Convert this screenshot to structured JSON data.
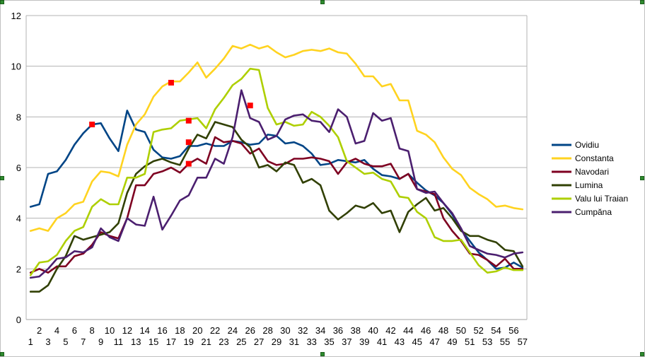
{
  "chart_data": {
    "type": "line",
    "title": "",
    "xlabel": "",
    "ylabel": "",
    "ylim": [
      0,
      12
    ],
    "yticks": [
      0,
      2,
      4,
      6,
      8,
      10,
      12
    ],
    "grid": "horizontal",
    "legend_position": "right",
    "categories": [
      "1",
      "2",
      "3",
      "4",
      "5",
      "6",
      "7",
      "8",
      "9",
      "10",
      "11",
      "12",
      "13",
      "14",
      "15",
      "16",
      "17",
      "18",
      "19",
      "20",
      "21",
      "22",
      "23",
      "24",
      "25",
      "26",
      "27",
      "28",
      "29",
      "30",
      "31",
      "32",
      "33",
      "34",
      "35",
      "36",
      "37",
      "38",
      "39",
      "40",
      "41",
      "42",
      "43",
      "44",
      "45",
      "46",
      "47",
      "48",
      "49",
      "50",
      "51",
      "52",
      "53",
      "54",
      "55",
      "56",
      "57"
    ],
    "series": [
      {
        "name": "Ovidiu",
        "color": "#004586",
        "values": [
          4.45,
          4.55,
          5.75,
          5.85,
          6.3,
          6.9,
          7.35,
          7.7,
          7.75,
          7.15,
          6.65,
          8.25,
          7.5,
          7.4,
          6.7,
          6.4,
          6.35,
          6.45,
          6.85,
          6.85,
          6.95,
          6.85,
          6.85,
          7.05,
          7.0,
          6.9,
          6.95,
          7.3,
          7.25,
          6.95,
          7.0,
          6.85,
          6.55,
          6.1,
          6.15,
          6.3,
          6.25,
          6.2,
          6.3,
          5.95,
          5.7,
          5.65,
          5.55,
          5.75,
          5.4,
          5.1,
          4.9,
          4.6,
          4.15,
          3.55,
          3.1,
          2.65,
          2.35,
          2.0,
          2.05,
          2.25,
          2.05
        ]
      },
      {
        "name": "Constanta",
        "color": "#ffd320",
        "values": [
          3.5,
          3.6,
          3.5,
          4.0,
          4.2,
          4.55,
          4.65,
          5.45,
          5.85,
          5.8,
          5.65,
          6.9,
          7.7,
          8.1,
          8.8,
          9.2,
          9.4,
          9.4,
          9.75,
          10.15,
          9.55,
          9.9,
          10.3,
          10.8,
          10.7,
          10.85,
          10.7,
          10.8,
          10.55,
          10.35,
          10.45,
          10.6,
          10.65,
          10.6,
          10.7,
          10.55,
          10.5,
          10.1,
          9.6,
          9.6,
          9.2,
          9.3,
          8.65,
          8.65,
          7.45,
          7.3,
          7.0,
          6.4,
          5.95,
          5.7,
          5.2,
          4.95,
          4.75,
          4.45,
          4.5,
          4.4,
          4.35
        ]
      },
      {
        "name": "Navodari",
        "color": "#7e0021",
        "values": [
          1.85,
          2.0,
          1.85,
          2.1,
          2.1,
          2.5,
          2.6,
          2.95,
          3.45,
          3.3,
          3.2,
          4.0,
          5.3,
          5.3,
          5.75,
          5.85,
          6.0,
          5.8,
          6.15,
          6.35,
          6.15,
          7.2,
          7.0,
          7.05,
          6.95,
          6.55,
          6.75,
          6.25,
          6.1,
          6.15,
          6.35,
          6.35,
          6.4,
          6.35,
          6.25,
          5.75,
          6.2,
          6.35,
          6.15,
          6.05,
          6.05,
          6.15,
          5.55,
          5.75,
          5.15,
          5.05,
          4.95,
          4.0,
          3.5,
          3.1,
          2.6,
          2.55,
          2.35,
          2.1,
          2.4,
          2.0,
          2.0
        ]
      },
      {
        "name": "Lumina",
        "color": "#314004",
        "values": [
          1.1,
          1.1,
          1.35,
          2.0,
          2.5,
          3.3,
          3.15,
          3.25,
          3.35,
          3.45,
          3.8,
          5.0,
          5.75,
          6.05,
          6.25,
          6.35,
          6.2,
          6.1,
          6.75,
          7.3,
          7.15,
          7.8,
          7.7,
          7.6,
          7.1,
          6.8,
          6.0,
          6.1,
          5.85,
          6.2,
          6.1,
          5.4,
          5.55,
          5.3,
          4.3,
          3.95,
          4.2,
          4.5,
          4.4,
          4.6,
          4.2,
          4.3,
          3.45,
          4.25,
          4.55,
          4.8,
          4.3,
          4.4,
          4.0,
          3.5,
          3.3,
          3.3,
          3.15,
          3.05,
          2.75,
          2.7,
          2.1
        ]
      },
      {
        "name": "Valu lui Traian",
        "color": "#aecf00",
        "values": [
          1.75,
          2.25,
          2.3,
          2.55,
          3.1,
          3.5,
          3.65,
          4.45,
          4.75,
          4.55,
          4.55,
          5.6,
          5.6,
          5.75,
          7.4,
          7.5,
          7.55,
          7.85,
          7.9,
          7.95,
          7.55,
          8.3,
          8.75,
          9.25,
          9.5,
          9.9,
          9.85,
          8.35,
          7.7,
          7.8,
          7.65,
          7.7,
          8.2,
          8.0,
          7.65,
          7.2,
          6.25,
          6.0,
          5.75,
          5.8,
          5.55,
          5.45,
          4.85,
          4.8,
          4.25,
          4.0,
          3.25,
          3.1,
          3.1,
          3.15,
          2.65,
          2.15,
          1.85,
          1.9,
          2.05,
          1.95,
          1.95
        ]
      },
      {
        "name": "Cumpăna",
        "color": "#4b1f6f",
        "values": [
          1.65,
          1.7,
          2.0,
          2.4,
          2.45,
          2.7,
          2.65,
          2.85,
          3.6,
          3.25,
          3.1,
          4.0,
          3.75,
          3.7,
          4.85,
          3.55,
          4.1,
          4.7,
          4.9,
          5.6,
          5.6,
          6.35,
          6.15,
          7.2,
          9.05,
          7.95,
          7.8,
          7.1,
          7.25,
          7.9,
          8.05,
          8.1,
          7.85,
          7.8,
          7.4,
          8.3,
          8.0,
          6.95,
          7.05,
          8.15,
          7.85,
          7.95,
          6.75,
          6.65,
          5.15,
          5.0,
          5.05,
          4.6,
          4.2,
          3.6,
          2.9,
          2.75,
          2.6,
          2.55,
          2.45,
          2.6,
          2.65
        ]
      }
    ],
    "markers": [
      {
        "x": "8",
        "y": 7.7
      },
      {
        "x": "17",
        "y": 9.35
      },
      {
        "x": "19",
        "y": 7.85
      },
      {
        "x": "19",
        "y": 7.0
      },
      {
        "x": "19",
        "y": 6.15
      },
      {
        "x": "26",
        "y": 8.45
      }
    ],
    "marker_color": "#ff0000"
  }
}
